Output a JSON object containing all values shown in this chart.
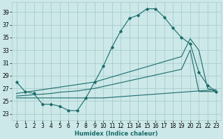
{
  "xlabel": "Humidex (Indice chaleur)",
  "background_color": "#cce8e8",
  "grid_color": "#aacccc",
  "line_color": "#1a6b6b",
  "x_ticks": [
    0,
    1,
    2,
    3,
    4,
    5,
    6,
    7,
    8,
    9,
    10,
    11,
    12,
    13,
    14,
    15,
    16,
    17,
    18,
    19,
    20,
    21,
    22,
    23
  ],
  "y_ticks": [
    23,
    25,
    27,
    29,
    31,
    33,
    35,
    37,
    39
  ],
  "ylim": [
    22.0,
    40.5
  ],
  "xlim": [
    -0.5,
    23.5
  ],
  "series1_x": [
    0,
    1,
    2,
    3,
    4,
    5,
    6,
    7,
    8,
    9,
    10,
    11,
    12,
    13,
    14,
    15,
    16,
    17,
    18,
    19,
    20,
    21,
    22,
    23
  ],
  "series1_y": [
    28.0,
    26.5,
    26.2,
    24.5,
    24.5,
    24.2,
    23.5,
    23.5,
    25.5,
    28.0,
    30.5,
    33.5,
    36.0,
    38.0,
    38.5,
    39.5,
    39.5,
    38.2,
    36.5,
    35.0,
    34.0,
    29.5,
    27.5,
    26.5
  ],
  "series2_x": [
    0,
    1,
    2,
    3,
    4,
    5,
    6,
    7,
    8,
    9,
    10,
    11,
    12,
    13,
    14,
    15,
    16,
    17,
    18,
    19,
    20,
    21,
    22,
    23
  ],
  "series2_y": [
    26.2,
    26.4,
    26.6,
    26.8,
    27.0,
    27.2,
    27.4,
    27.6,
    27.8,
    28.0,
    28.4,
    28.8,
    29.2,
    29.6,
    30.0,
    30.4,
    30.8,
    31.2,
    31.6,
    32.0,
    34.8,
    33.0,
    27.0,
    26.5
  ],
  "series3_x": [
    0,
    1,
    2,
    3,
    4,
    5,
    6,
    7,
    8,
    9,
    10,
    11,
    12,
    13,
    14,
    15,
    16,
    17,
    18,
    19,
    20,
    21,
    22,
    23
  ],
  "series3_y": [
    25.8,
    25.9,
    26.0,
    26.1,
    26.2,
    26.4,
    26.5,
    26.6,
    26.8,
    27.0,
    27.3,
    27.6,
    27.9,
    28.2,
    28.5,
    28.8,
    29.1,
    29.4,
    29.7,
    30.0,
    33.0,
    26.5,
    26.5,
    26.5
  ],
  "series4_x": [
    0,
    1,
    2,
    3,
    4,
    5,
    6,
    7,
    8,
    9,
    10,
    11,
    12,
    13,
    14,
    15,
    16,
    17,
    18,
    19,
    20,
    21,
    22,
    23
  ],
  "series4_y": [
    25.5,
    25.5,
    25.5,
    25.5,
    25.5,
    25.5,
    25.5,
    25.5,
    25.5,
    25.5,
    25.5,
    25.6,
    25.7,
    25.8,
    25.9,
    26.0,
    26.1,
    26.2,
    26.3,
    26.4,
    26.5,
    26.6,
    26.7,
    26.8
  ]
}
